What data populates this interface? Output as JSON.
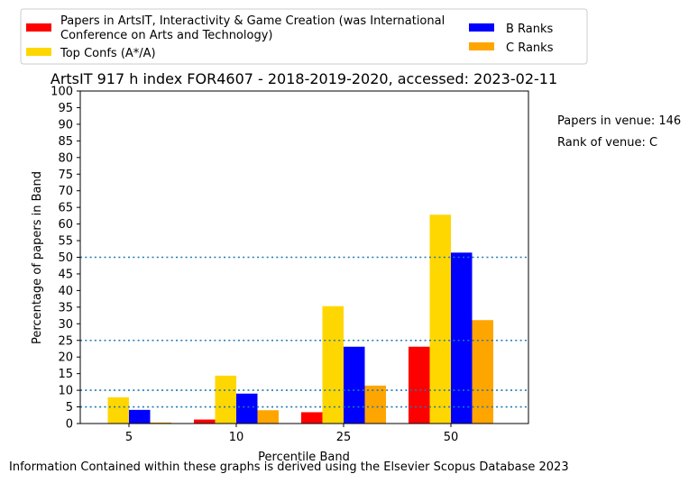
{
  "chart_data": {
    "type": "bar",
    "title": "ArtsIT 917 h index FOR4607 - 2018-2019-2020, accessed: 2023-02-11",
    "xlabel": "Percentile Band",
    "ylabel": "Percentage of papers in Band",
    "categories": [
      "5",
      "10",
      "25",
      "50"
    ],
    "ylim": [
      0,
      100
    ],
    "yticks": [
      0,
      5,
      10,
      15,
      20,
      25,
      30,
      35,
      40,
      45,
      50,
      55,
      60,
      65,
      70,
      75,
      80,
      85,
      90,
      95,
      100
    ],
    "series": [
      {
        "name": "Papers in ArtsIT, Interactivity & Game Creation (was International Conference on Arts and Technology)",
        "color": "#ff0000",
        "values": [
          0,
          1.2,
          3.4,
          23.1
        ]
      },
      {
        "name": "Top Confs (A*/A)",
        "color": "#ffd700",
        "values": [
          7.9,
          14.4,
          35.3,
          62.8
        ]
      },
      {
        "name": "B Ranks",
        "color": "#0000ff",
        "values": [
          4.1,
          9.0,
          23.1,
          51.4
        ]
      },
      {
        "name": "C Ranks",
        "color": "#ffa500",
        "values": [
          0.3,
          4.0,
          11.4,
          31.1
        ]
      }
    ],
    "reference_lines": [
      5,
      10,
      25,
      50
    ],
    "reference_line_color": "#1f77b4",
    "legend_position": "top",
    "grid": false
  },
  "annotations": {
    "papers_in_venue": "Papers in venue: 146",
    "rank_of_venue": "Rank of venue: C"
  },
  "footer": "Information Contained within these graphs is derived using the Elsevier Scopus Database 2023"
}
